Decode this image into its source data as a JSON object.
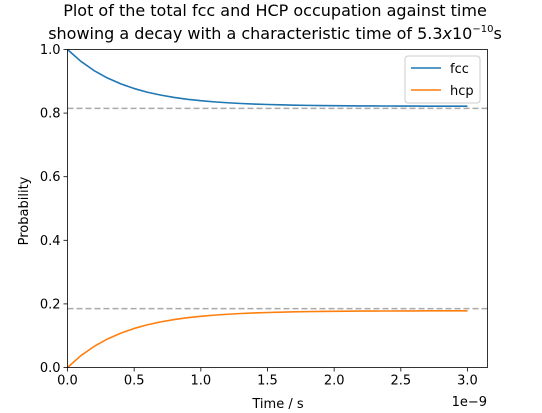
{
  "chart_data": {
    "type": "line",
    "title_line1": "Plot of the total fcc and HCP occupation against time",
    "title_line2_prefix": "showing a decay with a characteristic time of 5.3",
    "title_line2_italic": "x",
    "title_line2_base": "10",
    "title_line2_exp": "−10",
    "title_line2_unit": "s",
    "xlabel": "Time / s",
    "ylabel": "Probability",
    "x_offset_label": "1e−9",
    "xlim": [
      0,
      3.15
    ],
    "ylim": [
      0,
      1.0
    ],
    "x_unit_multiplier": 1e-09,
    "x_ticks": [
      0.0,
      0.5,
      1.0,
      1.5,
      2.0,
      2.5,
      3.0
    ],
    "x_tick_labels": [
      "0.0",
      "0.5",
      "1.0",
      "1.5",
      "2.0",
      "2.5",
      "3.0"
    ],
    "y_ticks": [
      0.0,
      0.2,
      0.4,
      0.6,
      0.8,
      1.0
    ],
    "y_tick_labels": [
      "0.0",
      "0.2",
      "0.4",
      "0.6",
      "0.8",
      "1.0"
    ],
    "legend_position": "top-right",
    "grid": false,
    "x": [
      0.0,
      0.1,
      0.2,
      0.3,
      0.4,
      0.5,
      0.6,
      0.7,
      0.8,
      0.9,
      1.0,
      1.1,
      1.2,
      1.3,
      1.4,
      1.5,
      1.6,
      1.7,
      1.8,
      1.9,
      2.0,
      2.1,
      2.2,
      2.3,
      2.4,
      2.5,
      2.6,
      2.7,
      2.8,
      2.9,
      3.0
    ],
    "series": [
      {
        "name": "fcc",
        "color": "#1f77b4",
        "values": [
          1.0,
          0.9629,
          0.9335,
          0.9103,
          0.8918,
          0.8772,
          0.8656,
          0.8565,
          0.8492,
          0.8435,
          0.8389,
          0.8353,
          0.8325,
          0.8302,
          0.8284,
          0.827,
          0.8259,
          0.825,
          0.8243,
          0.8237,
          0.8233,
          0.8229,
          0.8226,
          0.8224,
          0.8223,
          0.8221,
          0.822,
          0.8219,
          0.8219,
          0.8218,
          0.8218
        ]
      },
      {
        "name": "hcp",
        "color": "#ff7f0e",
        "values": [
          0.0,
          0.0371,
          0.0665,
          0.0897,
          0.1082,
          0.1228,
          0.1344,
          0.1435,
          0.1508,
          0.1565,
          0.1611,
          0.1647,
          0.1675,
          0.1698,
          0.1716,
          0.173,
          0.1741,
          0.175,
          0.1757,
          0.1763,
          0.1767,
          0.1771,
          0.1774,
          0.1776,
          0.1777,
          0.1779,
          0.178,
          0.1781,
          0.1781,
          0.1782,
          0.1782
        ]
      }
    ],
    "reference_lines": [
      {
        "y": 0.815,
        "color": "#aaaaaa",
        "style": "dashed"
      },
      {
        "y": 0.185,
        "color": "#aaaaaa",
        "style": "dashed"
      }
    ]
  }
}
